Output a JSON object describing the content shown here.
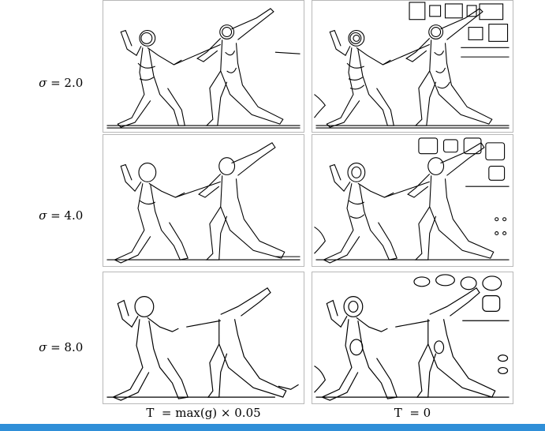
{
  "rows": [
    {
      "sigma_symbol": "σ",
      "sigma_text": " = 2.0"
    },
    {
      "sigma_symbol": "σ",
      "sigma_text": " = 4.0"
    },
    {
      "sigma_symbol": "σ",
      "sigma_text": " = 8.0"
    }
  ],
  "columns": [
    {
      "label": "T  = max(g) × 0.05"
    },
    {
      "label": "T  = 0"
    }
  ],
  "image_content": "edge-detection result of two fencers lunging",
  "accent_color": "#2f8fd8"
}
